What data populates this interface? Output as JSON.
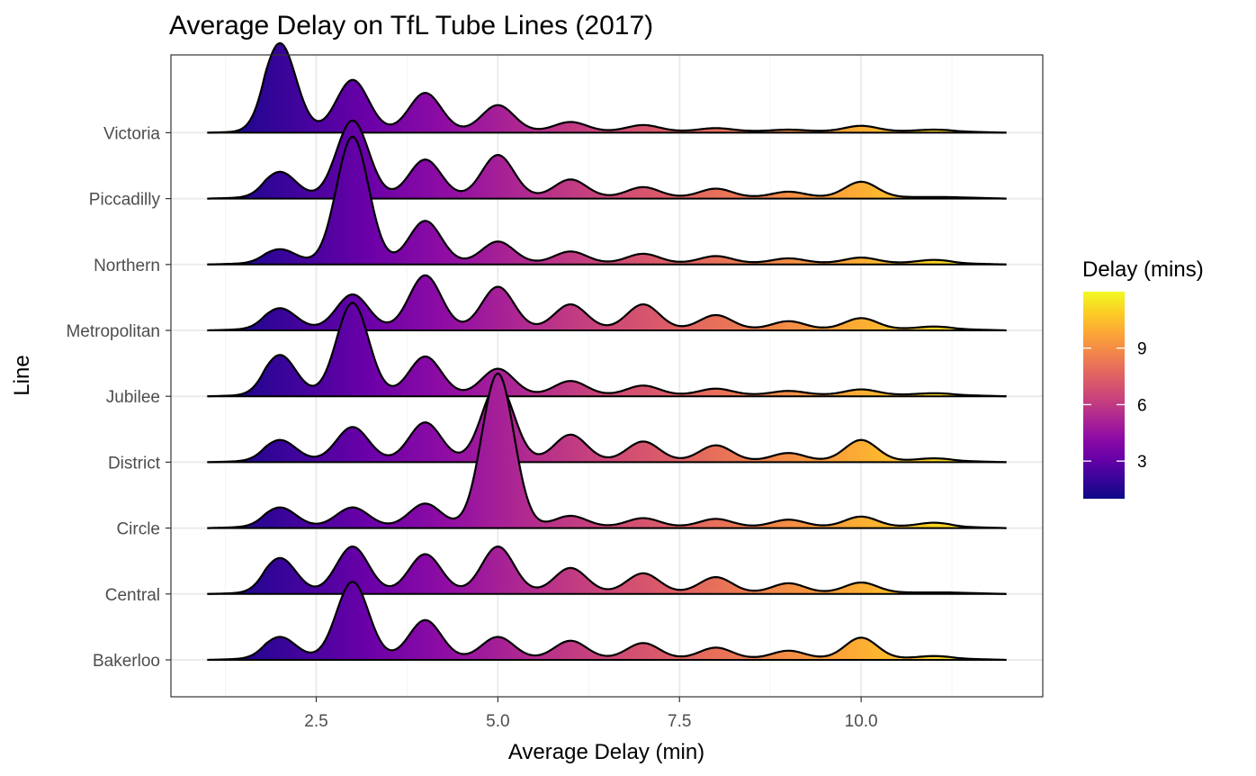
{
  "chart_data": {
    "type": "ridgeline",
    "title": "Average Delay on TfL Tube Lines (2017)",
    "xlabel": "Average Delay (min)",
    "ylabel": "Line",
    "xlim": [
      0.5,
      12.5
    ],
    "x_ticks": [
      2.5,
      5.0,
      7.5,
      10.0
    ],
    "x_tick_labels": [
      "2.5",
      "5.0",
      "7.5",
      "10.0"
    ],
    "x_minor_ticks": [
      1.25,
      3.75,
      6.25,
      8.75,
      11.25
    ],
    "density_range": [
      1,
      12
    ],
    "grid": true,
    "categories": [
      "Bakerloo",
      "Central",
      "Circle",
      "District",
      "Jubilee",
      "Metropolitan",
      "Northern",
      "Piccadilly",
      "Victoria"
    ],
    "series": [
      {
        "name": "Bakerloo",
        "peaks": {
          "2": 0.28,
          "3": 1.0,
          "4": 0.5,
          "5": 0.28,
          "6": 0.23,
          "7": 0.2,
          "8": 0.14,
          "9": 0.1,
          "10": 0.27,
          "11": 0.03
        }
      },
      {
        "name": "Central",
        "peaks": {
          "2": 0.45,
          "3": 0.6,
          "4": 0.5,
          "5": 0.6,
          "6": 0.32,
          "7": 0.25,
          "8": 0.2,
          "9": 0.12,
          "10": 0.13,
          "11": 0.0
        }
      },
      {
        "name": "Circle",
        "peaks": {
          "2": 0.25,
          "3": 0.25,
          "4": 0.3,
          "5": 2.0,
          "6": 0.14,
          "7": 0.11,
          "8": 0.1,
          "9": 0.09,
          "10": 0.13,
          "11": 0.05
        }
      },
      {
        "name": "District",
        "peaks": {
          "2": 0.27,
          "3": 0.44,
          "4": 0.5,
          "5": 1.0,
          "6": 0.34,
          "7": 0.25,
          "8": 0.2,
          "9": 0.1,
          "10": 0.27,
          "11": 0.03
        }
      },
      {
        "name": "Jubilee",
        "peaks": {
          "2": 0.52,
          "3": 1.2,
          "4": 0.5,
          "5": 0.34,
          "6": 0.18,
          "7": 0.12,
          "8": 0.08,
          "9": 0.05,
          "10": 0.07,
          "11": 0.02
        }
      },
      {
        "name": "Metropolitan",
        "peaks": {
          "2": 0.27,
          "3": 0.45,
          "4": 0.7,
          "5": 0.55,
          "6": 0.32,
          "7": 0.32,
          "8": 0.18,
          "9": 0.1,
          "10": 0.14,
          "11": 0.03
        }
      },
      {
        "name": "Northern",
        "peaks": {
          "2": 0.18,
          "3": 1.65,
          "4": 0.55,
          "5": 0.28,
          "6": 0.15,
          "7": 0.12,
          "8": 0.09,
          "9": 0.06,
          "10": 0.07,
          "11": 0.04
        }
      },
      {
        "name": "Piccadilly",
        "peaks": {
          "2": 0.33,
          "3": 1.0,
          "4": 0.49,
          "5": 0.55,
          "6": 0.23,
          "7": 0.13,
          "8": 0.11,
          "9": 0.07,
          "10": 0.2,
          "11": 0.0
        }
      },
      {
        "name": "Victoria",
        "peaks": {
          "2": 1.15,
          "3": 0.67,
          "4": 0.5,
          "5": 0.34,
          "6": 0.12,
          "7": 0.08,
          "8": 0.04,
          "9": 0.02,
          "10": 0.07,
          "11": 0.02
        }
      }
    ],
    "legend": {
      "title": "Delay (mins)",
      "placement": "right",
      "range": [
        1,
        12
      ],
      "ticks": [
        3,
        6,
        9
      ],
      "tick_labels": [
        "3",
        "6",
        "9"
      ]
    },
    "colors": {
      "gradient": [
        "#0d0887",
        "#3b049a",
        "#6a00a8",
        "#900da4",
        "#b12a90",
        "#cc4778",
        "#e16462",
        "#f1844b",
        "#fca636",
        "#fcce25",
        "#f0f921"
      ],
      "outline": "#000000",
      "panel_border": "#333333",
      "grid_major": "#ebebeb",
      "grid_minor": "#f5f5f5"
    }
  }
}
